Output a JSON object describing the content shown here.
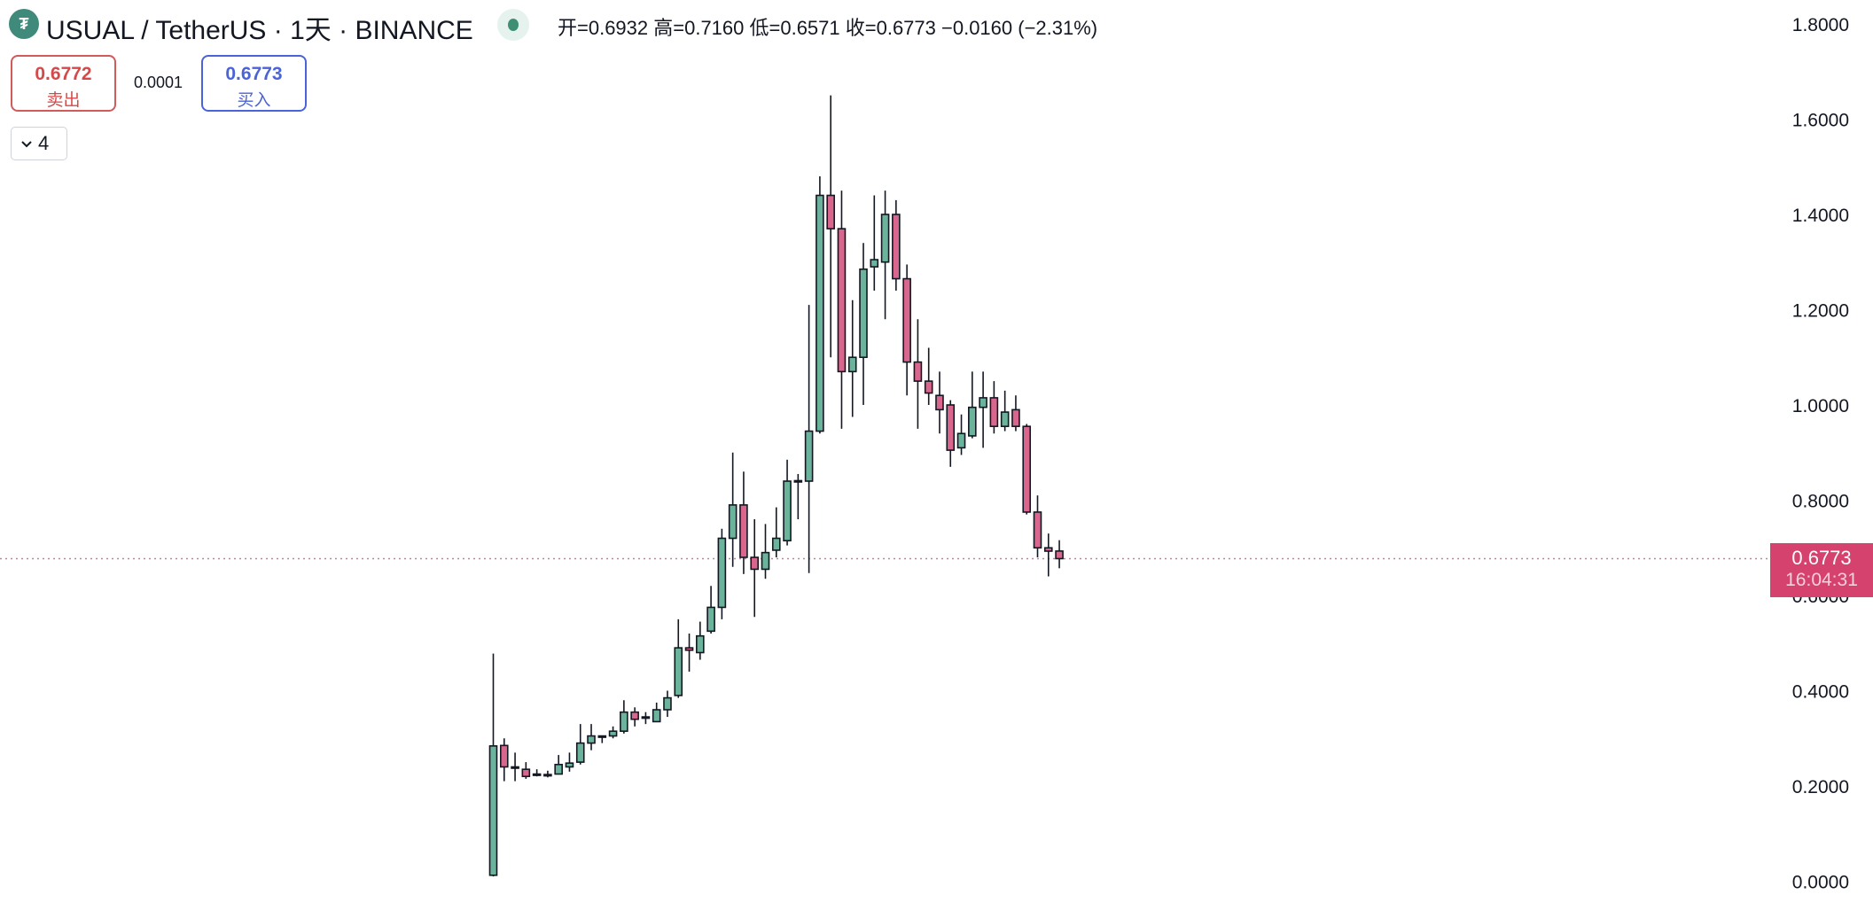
{
  "header": {
    "logo_glyph": "₮",
    "title": "USUAL / TetherUS · 1天 · BINANCE",
    "ohlc_text": "开=0.6932 高=0.7160 低=0.6571 收=0.6773 −0.0160 (−2.31%)"
  },
  "trade": {
    "sell_price": "0.6772",
    "sell_label": "卖出",
    "spread": "0.0001",
    "buy_price": "0.6773",
    "buy_label": "买入"
  },
  "indicators_toggle": {
    "icon": "chevron-down-icon",
    "count": "4"
  },
  "price_label": {
    "price": "0.6773",
    "countdown": "16:04:31"
  },
  "colors": {
    "up": "#6bb39b",
    "down": "#d9668c",
    "outline": "#131722",
    "price_line": "#b08a9c",
    "label_bg": "#d6426e"
  },
  "chart_data": {
    "type": "candlestick",
    "interval": "1天",
    "ylim": [
      0,
      1.8
    ],
    "yticks": [
      "0.0000",
      "0.2000",
      "0.4000",
      "0.6000",
      "0.8000",
      "1.0000",
      "1.2000",
      "1.4000",
      "1.6000",
      "1.8000"
    ],
    "grid": false,
    "last_price": 0.6773,
    "candles": [
      [
        0.0125,
        0.478,
        0.01,
        0.284
      ],
      [
        0.285,
        0.3,
        0.21,
        0.24
      ],
      [
        0.24,
        0.27,
        0.21,
        0.238
      ],
      [
        0.235,
        0.25,
        0.215,
        0.22
      ],
      [
        0.225,
        0.235,
        0.22,
        0.225
      ],
      [
        0.224,
        0.232,
        0.218,
        0.224
      ],
      [
        0.225,
        0.265,
        0.225,
        0.245
      ],
      [
        0.24,
        0.27,
        0.23,
        0.248
      ],
      [
        0.25,
        0.33,
        0.245,
        0.29
      ],
      [
        0.29,
        0.33,
        0.275,
        0.305
      ],
      [
        0.305,
        0.306,
        0.29,
        0.305
      ],
      [
        0.305,
        0.325,
        0.3,
        0.315
      ],
      [
        0.315,
        0.38,
        0.31,
        0.355
      ],
      [
        0.355,
        0.365,
        0.325,
        0.34
      ],
      [
        0.345,
        0.355,
        0.33,
        0.345
      ],
      [
        0.335,
        0.375,
        0.335,
        0.36
      ],
      [
        0.36,
        0.4,
        0.345,
        0.385
      ],
      [
        0.39,
        0.55,
        0.385,
        0.49
      ],
      [
        0.49,
        0.52,
        0.44,
        0.485
      ],
      [
        0.48,
        0.545,
        0.465,
        0.515
      ],
      [
        0.525,
        0.62,
        0.52,
        0.575
      ],
      [
        0.575,
        0.74,
        0.55,
        0.72
      ],
      [
        0.72,
        0.9,
        0.66,
        0.79
      ],
      [
        0.79,
        0.86,
        0.645,
        0.68
      ],
      [
        0.68,
        0.76,
        0.555,
        0.655
      ],
      [
        0.655,
        0.75,
        0.635,
        0.69
      ],
      [
        0.695,
        0.785,
        0.68,
        0.72
      ],
      [
        0.715,
        0.885,
        0.705,
        0.84
      ],
      [
        0.84,
        0.855,
        0.76,
        0.841
      ],
      [
        0.84,
        1.21,
        0.647,
        0.945
      ],
      [
        0.945,
        1.48,
        0.94,
        1.44
      ],
      [
        1.44,
        1.65,
        1.1,
        1.37
      ],
      [
        1.37,
        1.45,
        0.95,
        1.07
      ],
      [
        1.07,
        1.22,
        0.975,
        1.1
      ],
      [
        1.1,
        1.34,
        1.0,
        1.285
      ],
      [
        1.29,
        1.44,
        1.24,
        1.305
      ],
      [
        1.3,
        1.45,
        1.18,
        1.4
      ],
      [
        1.4,
        1.43,
        1.24,
        1.265
      ],
      [
        1.265,
        1.295,
        1.02,
        1.09
      ],
      [
        1.09,
        1.18,
        0.95,
        1.05
      ],
      [
        1.05,
        1.12,
        1.0,
        1.025
      ],
      [
        1.02,
        1.07,
        0.94,
        0.99
      ],
      [
        1.0,
        1.01,
        0.87,
        0.905
      ],
      [
        0.91,
        0.98,
        0.895,
        0.94
      ],
      [
        0.935,
        1.07,
        0.93,
        0.995
      ],
      [
        0.995,
        1.07,
        0.91,
        1.015
      ],
      [
        1.015,
        1.05,
        0.94,
        0.955
      ],
      [
        0.955,
        1.03,
        0.945,
        0.985
      ],
      [
        0.99,
        1.02,
        0.945,
        0.955
      ],
      [
        0.955,
        0.96,
        0.77,
        0.775
      ],
      [
        0.775,
        0.81,
        0.68,
        0.7
      ],
      [
        0.7,
        0.73,
        0.64,
        0.693
      ],
      [
        0.6932,
        0.716,
        0.6571,
        0.6773
      ]
    ],
    "candle_fields": [
      "open",
      "high",
      "low",
      "close"
    ]
  }
}
